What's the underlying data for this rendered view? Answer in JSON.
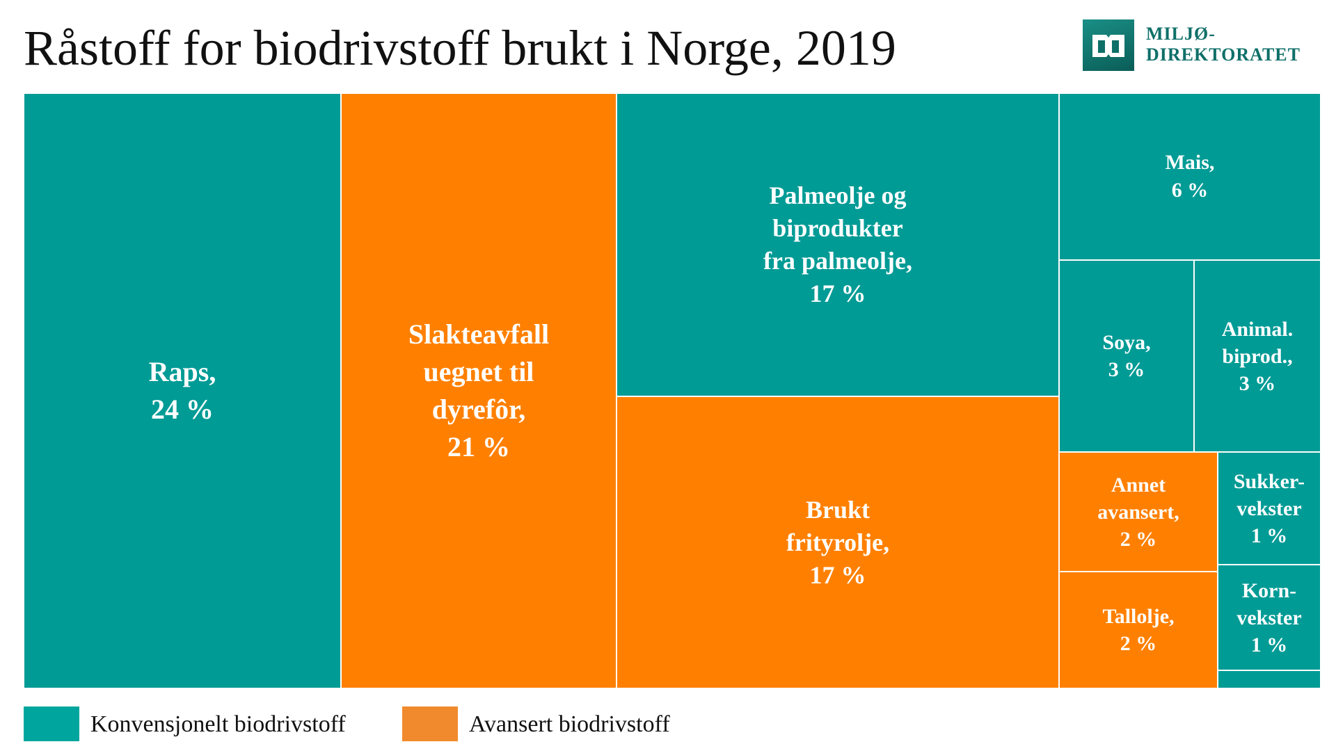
{
  "title": "Råstoff for biodrivstoff brukt i Norge, 2019",
  "logo": {
    "line1": "MILJØ-",
    "line2": "DIREKTORATET"
  },
  "colors": {
    "konvensjonelt": "#009b95",
    "avansert": "#ff8000",
    "legend_konvensjonelt": "#00a69e",
    "legend_avansert": "#f08a2d"
  },
  "chart_data": {
    "type": "treemap",
    "title": "Råstoff for biodrivstoff brukt i Norge, 2019",
    "items": [
      {
        "id": "raps",
        "label": "Raps,",
        "value": 24,
        "value_label": "24 %",
        "category": "konvensjonelt"
      },
      {
        "id": "slakteavfall",
        "label": "Slakteavfall\nuegnet til\ndyrefôr,",
        "value": 21,
        "value_label": "21 %",
        "category": "avansert"
      },
      {
        "id": "palmeolje",
        "label": "Palmeolje og\nbiprodukter\nfra palmeolje,",
        "value": 17,
        "value_label": "17 %",
        "category": "konvensjonelt"
      },
      {
        "id": "frityrolje",
        "label": "Brukt\nfrityrolje,",
        "value": 17,
        "value_label": "17 %",
        "category": "avansert"
      },
      {
        "id": "mais",
        "label": "Mais,",
        "value": 6,
        "value_label": "6 %",
        "category": "konvensjonelt"
      },
      {
        "id": "soya",
        "label": "Soya,",
        "value": 3,
        "value_label": "3 %",
        "category": "konvensjonelt"
      },
      {
        "id": "animal",
        "label": "Animal.\nbiprod.,",
        "value": 3,
        "value_label": "3 %",
        "category": "konvensjonelt"
      },
      {
        "id": "annet",
        "label": "Annet\navansert,",
        "value": 2,
        "value_label": "2 %",
        "category": "avansert"
      },
      {
        "id": "tallolje",
        "label": "Tallolje,",
        "value": 2,
        "value_label": "2 %",
        "category": "avansert"
      },
      {
        "id": "sukker",
        "label": "Sukker-\nvekster",
        "value": 1,
        "value_label": "1 %",
        "category": "konvensjonelt"
      },
      {
        "id": "korn",
        "label": "Korn-\nvekster",
        "value": 1,
        "value_label": "1 %",
        "category": "konvensjonelt"
      },
      {
        "id": "rest",
        "label": "",
        "value_label": "",
        "category": "konvensjonelt"
      }
    ],
    "legend": [
      {
        "label": "Konvensjonelt biodrivstoff",
        "category": "konvensjonelt"
      },
      {
        "label": "Avansert biodrivstoff",
        "category": "avansert"
      }
    ],
    "legend_position": "bottom-left"
  }
}
